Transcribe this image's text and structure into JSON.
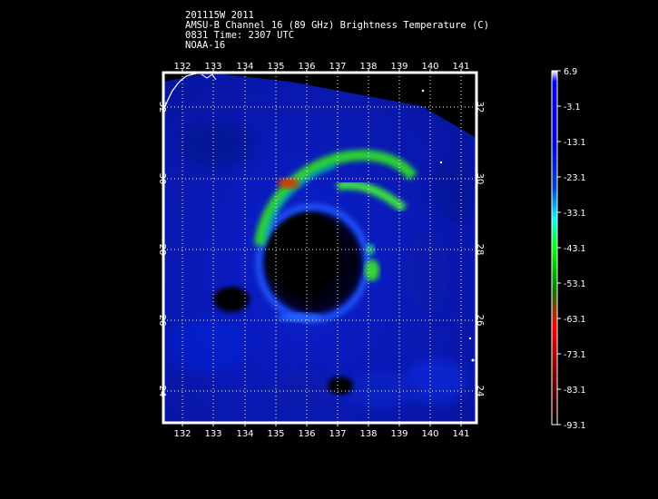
{
  "header": {
    "line1": "201115W 2011",
    "line2": "AMSU-B Channel 16 (89 GHz) Brightness Temperature (C)",
    "line3": "0831 Time: 2307 UTC",
    "line4": "NOAA-16"
  },
  "map": {
    "lon_labels": [
      "132",
      "133",
      "134",
      "135",
      "136",
      "137",
      "138",
      "139",
      "140",
      "141"
    ],
    "lat_labels": [
      "32",
      "30",
      "28",
      "26",
      "24"
    ],
    "background_color": "#0a17b4",
    "frame_color": "#ffffff",
    "grid_color": "#ffffff"
  },
  "colorbar": {
    "labels": [
      "6.9",
      "-3.1",
      "-13.1",
      "-23.1",
      "-33.1",
      "-43.1",
      "-53.1",
      "-63.1",
      "-73.1",
      "-83.1",
      "-93.1"
    ],
    "colors_top_to_bottom": [
      "#ffffff",
      "#0000ff",
      "#0000e6",
      "#0000c8",
      "#00ffff",
      "#00ff00",
      "#008000",
      "#ff0000",
      "#800000",
      "#200000",
      "#000000"
    ]
  }
}
